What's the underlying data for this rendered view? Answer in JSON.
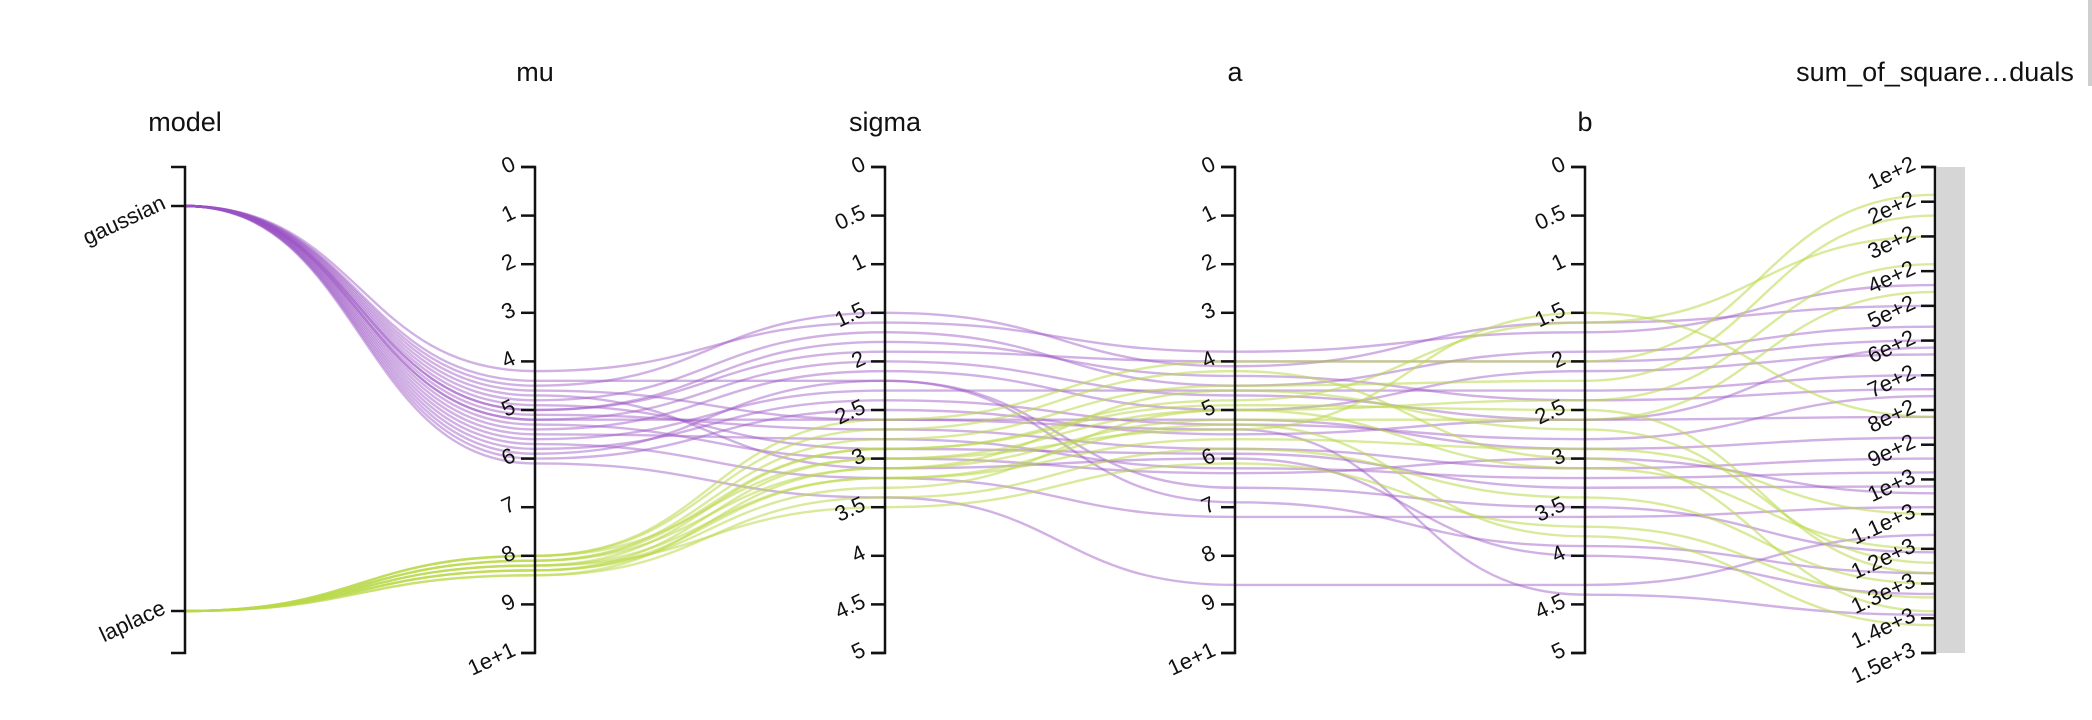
{
  "chart_data": {
    "type": "parallel_coordinates",
    "colors": {
      "gaussian": "#9a52c4",
      "laplace": "#b9d84a",
      "brush": "#d6d6d6",
      "axis": "#111111"
    },
    "axes": [
      {
        "key": "model",
        "title": "model",
        "kind": "category",
        "ticks": [
          "gaussian",
          "laplace"
        ],
        "domain": [
          "gaussian",
          "laplace"
        ]
      },
      {
        "key": "mu",
        "title": "mu",
        "kind": "linear",
        "ticks": [
          "0",
          "1",
          "2",
          "3",
          "4",
          "5",
          "6",
          "7",
          "8",
          "9",
          "1e+1"
        ],
        "domain": [
          0,
          10
        ]
      },
      {
        "key": "sigma",
        "title": "sigma",
        "kind": "linear",
        "ticks": [
          "0",
          "0.5",
          "1",
          "1.5",
          "2",
          "2.5",
          "3",
          "3.5",
          "4",
          "4.5",
          "5"
        ],
        "domain": [
          0,
          5
        ]
      },
      {
        "key": "a",
        "title": "a",
        "kind": "linear",
        "ticks": [
          "0",
          "1",
          "2",
          "3",
          "4",
          "5",
          "6",
          "7",
          "8",
          "9",
          "1e+1"
        ],
        "domain": [
          0,
          10
        ]
      },
      {
        "key": "b",
        "title": "b",
        "kind": "linear",
        "ticks": [
          "0",
          "0.5",
          "1",
          "1.5",
          "2",
          "2.5",
          "3",
          "3.5",
          "4",
          "4.5",
          "5"
        ],
        "domain": [
          0,
          5
        ]
      },
      {
        "key": "ssr",
        "title": "sum_of_square…duals",
        "kind": "linear",
        "ticks": [
          "1e+2",
          "2e+2",
          "3e+2",
          "4e+2",
          "5e+2",
          "6e+2",
          "7e+2",
          "8e+2",
          "9e+2",
          "1e+3",
          "1.1e+3",
          "1.2e+3",
          "1.3e+3",
          "1.4e+3",
          "1.5e+3"
        ],
        "domain": [
          100,
          1500
        ],
        "brushed": true
      }
    ],
    "records": [
      {
        "model": "gaussian",
        "mu": 4.2,
        "sigma": 1.6,
        "a": 3.8,
        "b": 1.7,
        "ssr": 440
      },
      {
        "model": "gaussian",
        "mu": 4.5,
        "sigma": 1.5,
        "a": 4.1,
        "b": 1.6,
        "ssr": 500
      },
      {
        "model": "gaussian",
        "mu": 4.8,
        "sigma": 1.7,
        "a": 4.5,
        "b": 1.9,
        "ssr": 560
      },
      {
        "model": "gaussian",
        "mu": 5.0,
        "sigma": 1.9,
        "a": 4.0,
        "b": 2.0,
        "ssr": 600
      },
      {
        "model": "gaussian",
        "mu": 5.2,
        "sigma": 2.0,
        "a": 4.7,
        "b": 2.6,
        "ssr": 620
      },
      {
        "model": "gaussian",
        "mu": 5.4,
        "sigma": 2.1,
        "a": 5.0,
        "b": 2.1,
        "ssr": 640
      },
      {
        "model": "gaussian",
        "mu": 5.6,
        "sigma": 2.3,
        "a": 4.6,
        "b": 2.3,
        "ssr": 700
      },
      {
        "model": "gaussian",
        "mu": 5.8,
        "sigma": 2.4,
        "a": 5.3,
        "b": 2.8,
        "ssr": 760
      },
      {
        "model": "gaussian",
        "mu": 6.0,
        "sigma": 2.5,
        "a": 5.5,
        "b": 2.6,
        "ssr": 820
      },
      {
        "model": "gaussian",
        "mu": 4.6,
        "sigma": 2.6,
        "a": 5.2,
        "b": 2.9,
        "ssr": 880
      },
      {
        "model": "gaussian",
        "mu": 5.1,
        "sigma": 2.7,
        "a": 5.8,
        "b": 3.1,
        "ssr": 940
      },
      {
        "model": "gaussian",
        "mu": 5.5,
        "sigma": 2.8,
        "a": 6.2,
        "b": 3.2,
        "ssr": 980
      },
      {
        "model": "gaussian",
        "mu": 4.9,
        "sigma": 2.9,
        "a": 5.9,
        "b": 3.3,
        "ssr": 1020
      },
      {
        "model": "gaussian",
        "mu": 5.3,
        "sigma": 3.0,
        "a": 6.3,
        "b": 3.0,
        "ssr": 1040
      },
      {
        "model": "gaussian",
        "mu": 5.7,
        "sigma": 3.2,
        "a": 7.2,
        "b": 3.6,
        "ssr": 1080
      },
      {
        "model": "gaussian",
        "mu": 6.1,
        "sigma": 3.4,
        "a": 8.6,
        "b": 4.3,
        "ssr": 1160
      },
      {
        "model": "gaussian",
        "mu": 4.4,
        "sigma": 2.2,
        "a": 6.6,
        "b": 3.5,
        "ssr": 1210
      },
      {
        "model": "gaussian",
        "mu": 5.9,
        "sigma": 2.2,
        "a": 6.9,
        "b": 3.9,
        "ssr": 1270
      },
      {
        "model": "gaussian",
        "mu": 4.7,
        "sigma": 3.1,
        "a": 6.0,
        "b": 4.0,
        "ssr": 1330
      },
      {
        "model": "gaussian",
        "mu": 5.2,
        "sigma": 2.6,
        "a": 5.4,
        "b": 4.4,
        "ssr": 1390
      },
      {
        "model": "gaussian",
        "mu": 5.0,
        "sigma": 1.8,
        "a": 4.3,
        "b": 2.4,
        "ssr": 740
      },
      {
        "model": "laplace",
        "mu": 8.0,
        "sigma": 2.6,
        "a": 4.0,
        "b": 2.0,
        "ssr": 180
      },
      {
        "model": "laplace",
        "mu": 8.1,
        "sigma": 2.8,
        "a": 4.5,
        "b": 2.2,
        "ssr": 240
      },
      {
        "model": "laplace",
        "mu": 8.2,
        "sigma": 2.9,
        "a": 4.8,
        "b": 1.6,
        "ssr": 300
      },
      {
        "model": "laplace",
        "mu": 8.3,
        "sigma": 3.0,
        "a": 5.0,
        "b": 2.4,
        "ssr": 380
      },
      {
        "model": "laplace",
        "mu": 8.4,
        "sigma": 3.1,
        "a": 5.2,
        "b": 2.6,
        "ssr": 460
      },
      {
        "model": "laplace",
        "mu": 8.0,
        "sigma": 3.0,
        "a": 5.4,
        "b": 1.5,
        "ssr": 820
      },
      {
        "model": "laplace",
        "mu": 8.2,
        "sigma": 3.2,
        "a": 5.6,
        "b": 2.9,
        "ssr": 1100
      },
      {
        "model": "laplace",
        "mu": 8.3,
        "sigma": 3.3,
        "a": 5.0,
        "b": 3.1,
        "ssr": 1200
      },
      {
        "model": "laplace",
        "mu": 8.1,
        "sigma": 3.1,
        "a": 4.6,
        "b": 2.7,
        "ssr": 1240
      },
      {
        "model": "laplace",
        "mu": 8.4,
        "sigma": 3.4,
        "a": 5.8,
        "b": 3.4,
        "ssr": 1300
      },
      {
        "model": "laplace",
        "mu": 8.2,
        "sigma": 3.5,
        "a": 6.1,
        "b": 3.7,
        "ssr": 1340
      },
      {
        "model": "laplace",
        "mu": 8.0,
        "sigma": 2.7,
        "a": 4.2,
        "b": 3.0,
        "ssr": 1380
      },
      {
        "model": "laplace",
        "mu": 8.3,
        "sigma": 3.2,
        "a": 5.3,
        "b": 3.8,
        "ssr": 1420
      },
      {
        "model": "laplace",
        "mu": 8.1,
        "sigma": 2.9,
        "a": 4.9,
        "b": 2.5,
        "ssr": 1270
      }
    ]
  }
}
